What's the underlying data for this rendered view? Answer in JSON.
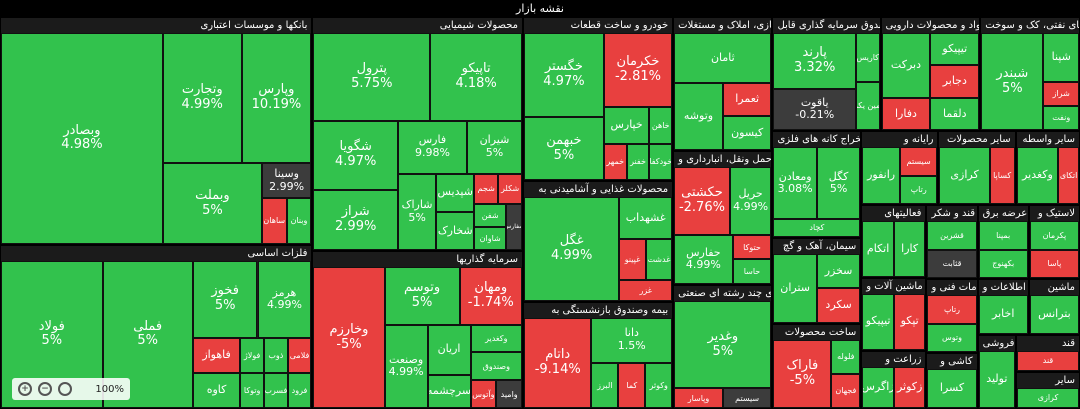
{
  "page": {
    "title": "نقشه بازار"
  },
  "zoom": {
    "level": "100%"
  },
  "colors": {
    "pos": "#32c24d",
    "neg": "#e8403f",
    "flat": "#3c3c3c",
    "posDark": "#1f8f37",
    "negDark": "#a52a2a"
  },
  "chart_data": {
    "type": "treemap",
    "sectors": [
      {
        "name": "بانکها و موسسات اعتباری",
        "weight": 7.5,
        "tiles": [
          {
            "symbol": "وبصادر",
            "change": "4.98%",
            "state": "pos",
            "w": 60
          },
          {
            "symbol": "وتجارت",
            "change": "4.99%",
            "state": "pos",
            "w": 18
          },
          {
            "symbol": "وپارس",
            "change": "10.19%",
            "state": "pos",
            "w": 16
          },
          {
            "symbol": "وبملت",
            "change": "5%",
            "state": "pos",
            "w": 14
          },
          {
            "symbol": "وسینا",
            "change": "2.99%",
            "state": "flat",
            "w": 3
          },
          {
            "symbol": "ساهان",
            "change": "",
            "state": "neg",
            "w": 2
          },
          {
            "symbol": "وبنان",
            "change": "",
            "state": "pos",
            "w": 2
          }
        ]
      },
      {
        "name": "فلزات اساسی",
        "weight": 5.4,
        "tiles": [
          {
            "symbol": "فولاد",
            "change": "5%",
            "state": "pos",
            "w": 18
          },
          {
            "symbol": "فملی",
            "change": "5%",
            "state": "pos",
            "w": 16
          },
          {
            "symbol": "فخوز",
            "change": "5%",
            "state": "pos",
            "w": 6
          },
          {
            "symbol": "هرمز",
            "change": "4.99%",
            "state": "pos",
            "w": 5
          },
          {
            "symbol": "فاهواز",
            "change": "",
            "state": "neg",
            "w": 2
          },
          {
            "symbol": "کاوه",
            "change": "",
            "state": "pos",
            "w": 2
          },
          {
            "symbol": "فولاژ",
            "change": "",
            "state": "pos",
            "w": 1
          },
          {
            "symbol": "وتوکا",
            "change": "",
            "state": "pos",
            "w": 1
          },
          {
            "symbol": "ذوب",
            "change": "",
            "state": "pos",
            "w": 1
          },
          {
            "symbol": "فلامی",
            "change": "",
            "state": "neg",
            "w": 1
          },
          {
            "symbol": "فسرب",
            "change": "",
            "state": "pos",
            "w": 1
          },
          {
            "symbol": "فرود",
            "change": "",
            "state": "pos",
            "w": 1
          }
        ]
      },
      {
        "name": "محصولات شیمیایی",
        "weight": 5.2,
        "tiles": [
          {
            "symbol": "پترول",
            "change": "5.75%",
            "state": "pos",
            "w": 14
          },
          {
            "symbol": "تاپیکو",
            "change": "4.18%",
            "state": "pos",
            "w": 11
          },
          {
            "symbol": "شگویا",
            "change": "4.97%",
            "state": "pos",
            "w": 8
          },
          {
            "symbol": "شراز",
            "change": "2.99%",
            "state": "pos",
            "w": 7
          },
          {
            "symbol": "فارس",
            "change": "9.98%",
            "state": "pos",
            "w": 5
          },
          {
            "symbol": "شیران",
            "change": "5%",
            "state": "pos",
            "w": 4
          },
          {
            "symbol": "شاراک",
            "change": "5%",
            "state": "pos",
            "w": 4
          },
          {
            "symbol": "شپدیس",
            "change": "",
            "state": "pos",
            "w": 2
          },
          {
            "symbol": "شخارک",
            "change": "",
            "state": "pos",
            "w": 2
          },
          {
            "symbol": "شجم",
            "change": "",
            "state": "neg",
            "w": 1
          },
          {
            "symbol": "شکلر",
            "change": "",
            "state": "neg",
            "w": 1
          },
          {
            "symbol": "شفن",
            "change": "",
            "state": "pos",
            "w": 1
          },
          {
            "symbol": "شاوان",
            "change": "",
            "state": "pos",
            "w": 1
          },
          {
            "symbol": "شفارس",
            "change": "",
            "state": "flat",
            "w": 1
          }
        ]
      },
      {
        "name": "سرمایه گذاریها",
        "weight": 3.5,
        "tiles": [
          {
            "symbol": "وخارزم",
            "change": "-5%",
            "state": "neg",
            "w": 14
          },
          {
            "symbol": "وتوسم",
            "change": "5%",
            "state": "pos",
            "w": 6
          },
          {
            "symbol": "ومهان",
            "change": "-1.74%",
            "state": "neg",
            "w": 5
          },
          {
            "symbol": "وصنعت",
            "change": "4.99%",
            "state": "pos",
            "w": 5
          },
          {
            "symbol": "اریان",
            "change": "",
            "state": "pos",
            "w": 3
          },
          {
            "symbol": "سرچشمه",
            "change": "",
            "state": "pos",
            "w": 2
          },
          {
            "symbol": "وکغدیر",
            "change": "",
            "state": "pos",
            "w": 2
          },
          {
            "symbol": "وصندوق",
            "change": "",
            "state": "pos",
            "w": 2
          },
          {
            "symbol": "وآتوس",
            "change": "",
            "state": "neg",
            "w": 1
          },
          {
            "symbol": "وامید",
            "change": "",
            "state": "flat",
            "w": 1
          }
        ]
      },
      {
        "name": "خودرو و ساخت قطعات",
        "weight": 2.6,
        "tiles": [
          {
            "symbol": "خگستر",
            "change": "4.97%",
            "state": "pos",
            "w": 8
          },
          {
            "symbol": "خبهمن",
            "change": "5%",
            "state": "pos",
            "w": 6
          },
          {
            "symbol": "خکرمان",
            "change": "-2.81%",
            "state": "neg",
            "w": 6
          },
          {
            "symbol": "خپارس",
            "change": "",
            "state": "pos",
            "w": 2
          },
          {
            "symbol": "خاهن",
            "change": "",
            "state": "pos",
            "w": 1
          },
          {
            "symbol": "خمهر",
            "change": "",
            "state": "neg",
            "w": 1
          },
          {
            "symbol": "خفنر",
            "change": "",
            "state": "pos",
            "w": 1
          },
          {
            "symbol": "خودکفا",
            "change": "",
            "state": "pos",
            "w": 1
          }
        ]
      },
      {
        "name": "بیمه وصندوق بازنشستگی به",
        "weight": 1.7,
        "tiles": [
          {
            "symbol": "داتام",
            "change": "-9.14%",
            "state": "neg",
            "w": 5
          },
          {
            "symbol": "دانا",
            "change": "1.5%",
            "state": "pos",
            "w": 3
          },
          {
            "symbol": "البرز",
            "change": "",
            "state": "pos",
            "w": 1
          },
          {
            "symbol": "کما",
            "change": "",
            "state": "neg",
            "w": 1
          },
          {
            "symbol": "وکوثر",
            "change": "",
            "state": "pos",
            "w": 1
          }
        ]
      },
      {
        "name": "محصولات غذایی و آشامیدنی به",
        "weight": 1.9,
        "tiles": [
          {
            "symbol": "غگل",
            "change": "4.99%",
            "state": "pos",
            "w": 9
          },
          {
            "symbol": "غشهداب",
            "change": "",
            "state": "pos",
            "w": 2
          },
          {
            "symbol": "غپینو",
            "change": "",
            "state": "neg",
            "w": 1
          },
          {
            "symbol": "غدشت",
            "change": "",
            "state": "pos",
            "w": 1
          },
          {
            "symbol": "غزر",
            "change": "",
            "state": "neg",
            "w": 1
          }
        ]
      },
      {
        "name": "انبوه سازی، املاک و مستغلات",
        "weight": 1.4,
        "tiles": [
          {
            "symbol": "ثامان",
            "change": "",
            "state": "pos",
            "w": 3
          },
          {
            "symbol": "وتوشه",
            "change": "",
            "state": "pos",
            "w": 2
          },
          {
            "symbol": "ثعمرا",
            "change": "",
            "state": "neg",
            "w": 1
          },
          {
            "symbol": "کیسون",
            "change": "",
            "state": "pos",
            "w": 1
          }
        ]
      },
      {
        "name": "شرکتهای چند رشته ای صنعتی",
        "weight": 1.3,
        "tiles": [
          {
            "symbol": "وغدیر",
            "change": "5%",
            "state": "pos",
            "w": 9
          },
          {
            "symbol": "وپاسار",
            "change": "",
            "state": "neg",
            "w": 1
          },
          {
            "symbol": "سیستم",
            "change": "",
            "state": "flat",
            "w": 1
          }
        ]
      },
      {
        "name": "حمل ونقل، انبارداری و",
        "weight": 1.4,
        "tiles": [
          {
            "symbol": "حکشتی",
            "change": "-2.76%",
            "state": "neg",
            "w": 4
          },
          {
            "symbol": "حریل",
            "change": "4.99%",
            "state": "pos",
            "w": 3
          },
          {
            "symbol": "حفارس",
            "change": "4.99%",
            "state": "pos",
            "w": 3
          },
          {
            "symbol": "حتوکا",
            "change": "",
            "state": "neg",
            "w": 1
          },
          {
            "symbol": "حاسا",
            "change": "",
            "state": "pos",
            "w": 1
          }
        ]
      },
      {
        "name": "صندوق سرمایه گذاری قابل",
        "weight": 1.3,
        "tiles": [
          {
            "symbol": "پارند",
            "change": "3.32%",
            "state": "pos",
            "w": 4
          },
          {
            "symbol": "یاقوت",
            "change": "-0.21%",
            "state": "flat",
            "w": 3
          },
          {
            "symbol": "کاریس",
            "change": "",
            "state": "pos",
            "w": 1
          },
          {
            "symbol": "امین یکم",
            "change": "",
            "state": "pos",
            "w": 1
          }
        ]
      },
      {
        "name": "مواد و محصولات دارویی",
        "weight": 1.2,
        "tiles": [
          {
            "symbol": "دبرکت",
            "change": "",
            "state": "pos",
            "w": 2
          },
          {
            "symbol": "دفارا",
            "change": "",
            "state": "neg",
            "w": 1
          },
          {
            "symbol": "تیپیکو",
            "change": "",
            "state": "pos",
            "w": 1
          },
          {
            "symbol": "دجابر",
            "change": "",
            "state": "neg",
            "w": 1
          },
          {
            "symbol": "دلقما",
            "change": "",
            "state": "pos",
            "w": 1
          }
        ]
      },
      {
        "name": "فراورده های نفتی، کک و سوخت",
        "weight": 1.2,
        "tiles": [
          {
            "symbol": "شبندر",
            "change": "5%",
            "state": "pos",
            "w": 7
          },
          {
            "symbol": "شپنا",
            "change": "",
            "state": "pos",
            "w": 2
          },
          {
            "symbol": "شراز",
            "change": "",
            "state": "neg",
            "w": 1
          },
          {
            "symbol": "ونفت",
            "change": "",
            "state": "pos",
            "w": 1
          }
        ]
      },
      {
        "name": "سیمان، آهک و گچ",
        "weight": 0.8,
        "tiles": [
          {
            "symbol": "ستران",
            "change": "",
            "state": "pos",
            "w": 2
          },
          {
            "symbol": "سخزر",
            "change": "",
            "state": "pos",
            "w": 1
          },
          {
            "symbol": "سکرد",
            "change": "",
            "state": "neg",
            "w": 1
          }
        ]
      },
      {
        "name": "ساخت محصولات",
        "weight": 0.8,
        "tiles": [
          {
            "symbol": "فاراک",
            "change": "-5%",
            "state": "neg",
            "w": 4
          },
          {
            "symbol": "فلوله",
            "change": "",
            "state": "pos",
            "w": 1
          },
          {
            "symbol": "فجهان",
            "change": "",
            "state": "neg",
            "w": 1
          }
        ]
      },
      {
        "name": "استخراج کانه های فلزی",
        "weight": 1.0,
        "tiles": [
          {
            "symbol": "ومعادن",
            "change": "3.08%",
            "state": "pos",
            "w": 4
          },
          {
            "symbol": "کگل",
            "change": "5%",
            "state": "pos",
            "w": 4
          },
          {
            "symbol": "کچاد",
            "change": "",
            "state": "pos",
            "w": 2
          }
        ]
      },
      {
        "name": "رایانه و",
        "weight": 0.6,
        "tiles": [
          {
            "symbol": "رانفور",
            "change": "",
            "state": "pos",
            "w": 2
          },
          {
            "symbol": "سیستم",
            "change": "",
            "state": "neg",
            "w": 1
          },
          {
            "symbol": "رتاپ",
            "change": "",
            "state": "pos",
            "w": 1
          }
        ]
      },
      {
        "name": "سایر محصولات",
        "weight": 0.6,
        "tiles": [
          {
            "symbol": "کرازی",
            "change": "",
            "state": "pos",
            "w": 2
          },
          {
            "symbol": "کساپا",
            "change": "",
            "state": "neg",
            "w": 1
          }
        ]
      },
      {
        "name": "زراعت و",
        "weight": 0.4,
        "tiles": [
          {
            "symbol": "زاگرس",
            "change": "",
            "state": "pos",
            "w": 1
          },
          {
            "symbol": "زکوثر",
            "change": "",
            "state": "neg",
            "w": 1
          }
        ]
      },
      {
        "name": "قند و شکر",
        "weight": 0.4,
        "tiles": [
          {
            "symbol": "قشرین",
            "change": "",
            "state": "pos",
            "w": 1
          },
          {
            "symbol": "قثابت",
            "change": "",
            "state": "flat",
            "w": 1
          }
        ]
      },
      {
        "name": "عرضه برق،",
        "weight": 0.4,
        "tiles": [
          {
            "symbol": "بمپنا",
            "change": "",
            "state": "pos",
            "w": 1
          },
          {
            "symbol": "بکهنوج",
            "change": "",
            "state": "pos",
            "w": 1
          }
        ]
      },
      {
        "name": "سایر واسطه",
        "weight": 0.5,
        "tiles": [
          {
            "symbol": "وکغدیر",
            "change": "",
            "state": "pos",
            "w": 2
          },
          {
            "symbol": "اتکای",
            "change": "",
            "state": "neg",
            "w": 1
          }
        ]
      },
      {
        "name": "فعالیتهای",
        "weight": 0.5,
        "tiles": [
          {
            "symbol": "اتکام",
            "change": "",
            "state": "pos",
            "w": 1
          },
          {
            "symbol": "کارا",
            "change": "",
            "state": "pos",
            "w": 1
          }
        ]
      },
      {
        "name": "لاستیک و",
        "weight": 0.4,
        "tiles": [
          {
            "symbol": "پکرمان",
            "change": "",
            "state": "pos",
            "w": 1
          },
          {
            "symbol": "پاسا",
            "change": "",
            "state": "neg",
            "w": 1
          }
        ]
      },
      {
        "name": "خدمات فنی و",
        "weight": 0.4,
        "tiles": [
          {
            "symbol": "رتاپ",
            "change": "",
            "state": "neg",
            "w": 1
          },
          {
            "symbol": "وتوس",
            "change": "",
            "state": "pos",
            "w": 1
          }
        ]
      },
      {
        "name": "ماشین آلات و",
        "weight": 0.5,
        "tiles": [
          {
            "symbol": "تیپیکو",
            "change": "",
            "state": "pos",
            "w": 1
          },
          {
            "symbol": "تپکو",
            "change": "",
            "state": "neg",
            "w": 1
          }
        ]
      },
      {
        "name": "کاشی و",
        "weight": 0.3,
        "tiles": [
          {
            "symbol": "کسرا",
            "change": "",
            "state": "pos",
            "w": 1
          }
        ]
      },
      {
        "name": "اطلاعات و",
        "weight": 0.3,
        "tiles": [
          {
            "symbol": "اخابر",
            "change": "",
            "state": "pos",
            "w": 1
          }
        ]
      },
      {
        "name": "ماشین",
        "weight": 0.3,
        "tiles": [
          {
            "symbol": "بترانس",
            "change": "",
            "state": "pos",
            "w": 1
          }
        ]
      },
      {
        "name": "خرده فروشی",
        "weight": 0.3,
        "tiles": [
          {
            "symbol": "تولید",
            "change": "",
            "state": "pos",
            "w": 1
          }
        ]
      },
      {
        "name": "قند",
        "weight": 0.25,
        "tiles": [
          {
            "symbol": "قند",
            "change": "",
            "state": "neg",
            "w": 1
          }
        ]
      },
      {
        "name": "سایر",
        "weight": 0.25,
        "tiles": [
          {
            "symbol": "کرازی",
            "change": "",
            "state": "pos",
            "w": 1
          }
        ]
      }
    ]
  }
}
